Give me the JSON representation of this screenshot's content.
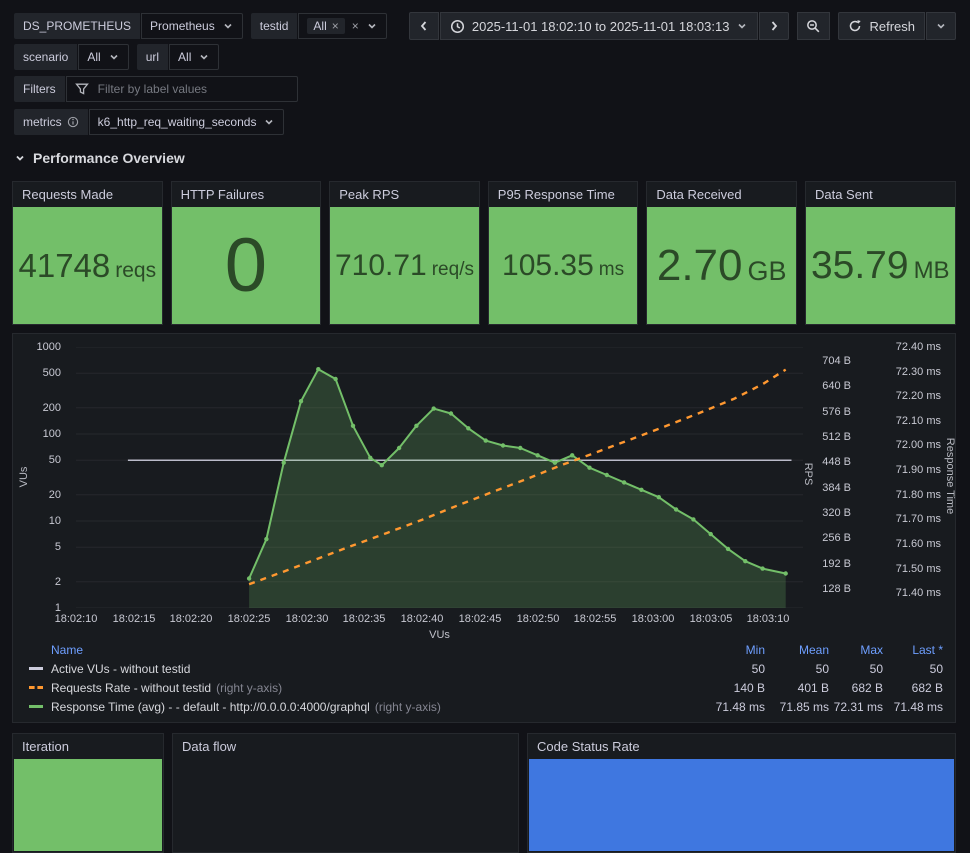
{
  "toolbar": {
    "datasource": {
      "label": "DS_PROMETHEUS",
      "value": "Prometheus"
    },
    "testid": {
      "label": "testid",
      "selected_chip": "All"
    },
    "time_range": {
      "value": "2025-11-01 18:02:10 to 2025-11-01 18:03:13"
    },
    "refresh": {
      "label": "Refresh"
    },
    "scenario": {
      "label": "scenario",
      "value": "All"
    },
    "url": {
      "label": "url",
      "value": "All"
    },
    "filters": {
      "label": "Filters",
      "placeholder": "Filter by label values"
    },
    "metrics": {
      "label": "metrics",
      "value": "k6_http_req_waiting_seconds"
    }
  },
  "section_title": "Performance Overview",
  "stats": [
    {
      "title": "Requests Made",
      "value": "41748",
      "unit": "reqs"
    },
    {
      "title": "HTTP Failures",
      "value": "0",
      "unit": ""
    },
    {
      "title": "Peak RPS",
      "value": "710.71",
      "unit": "req/s"
    },
    {
      "title": "P95 Response Time",
      "value": "105.35",
      "unit": "ms"
    },
    {
      "title": "Data Received",
      "value": "2.70",
      "unit": "GB"
    },
    {
      "title": "Data Sent",
      "value": "35.79",
      "unit": "MB"
    }
  ],
  "chart_data": {
    "type": "line",
    "x_tick_labels": [
      "18:02:10",
      "18:02:15",
      "18:02:20",
      "18:02:25",
      "18:02:30",
      "18:02:35",
      "18:02:40",
      "18:02:45",
      "18:02:50",
      "18:02:55",
      "18:03:00",
      "18:03:05",
      "18:03:10"
    ],
    "x_domain_seconds": [
      0,
      63
    ],
    "xlabel": "VUs",
    "grid": true,
    "axes": {
      "left": {
        "label": "VUs",
        "scale": "log10",
        "ticks": [
          1000,
          500,
          200,
          100,
          50,
          20,
          10,
          5,
          2,
          1
        ],
        "domain": [
          1,
          1000
        ]
      },
      "right_bytes": {
        "label": "RPS",
        "tick_labels": [
          "704 B",
          "640 B",
          "576 B",
          "512 B",
          "448 B",
          "384 B",
          "320 B",
          "256 B",
          "192 B",
          "128 B"
        ],
        "domain": [
          80,
          739
        ]
      },
      "right_ms": {
        "label": "Response Time",
        "tick_labels": [
          "72.40 ms",
          "72.30 ms",
          "72.20 ms",
          "72.10 ms",
          "72.00 ms",
          "71.90 ms",
          "71.80 ms",
          "71.70 ms",
          "71.60 ms",
          "71.50 ms",
          "71.40 ms"
        ],
        "domain": [
          71.34,
          72.4
        ]
      }
    },
    "series": [
      {
        "name": "Active VUs - without testid",
        "axis": "left",
        "color": "#ccccdc",
        "dashed": false,
        "points": [
          [
            4.5,
            50
          ],
          [
            62,
            50
          ]
        ]
      },
      {
        "name": "Requests Rate - without testid",
        "axis": "right_bytes",
        "color": "#ff9830",
        "dashed": true,
        "points": [
          [
            15,
            140
          ],
          [
            18,
            172
          ],
          [
            21,
            205
          ],
          [
            24,
            238
          ],
          [
            27,
            270
          ],
          [
            30,
            303
          ],
          [
            33,
            338
          ],
          [
            36,
            372
          ],
          [
            39,
            405
          ],
          [
            42,
            440
          ],
          [
            45,
            472
          ],
          [
            48,
            505
          ],
          [
            51,
            538
          ],
          [
            54,
            572
          ],
          [
            57,
            608
          ],
          [
            59.5,
            645
          ],
          [
            61.5,
            682
          ]
        ]
      },
      {
        "name": "Response Time (avg) - - default - http://0.0.0.0:4000/graphql",
        "axis": "right_ms",
        "color": "#73bf69",
        "dashed": false,
        "points": [
          [
            15,
            71.46
          ],
          [
            16.5,
            71.62
          ],
          [
            18,
            71.93
          ],
          [
            19.5,
            72.18
          ],
          [
            21,
            72.31
          ],
          [
            22.5,
            72.27
          ],
          [
            24,
            72.08
          ],
          [
            25.5,
            71.95
          ],
          [
            26.5,
            71.92
          ],
          [
            28,
            71.99
          ],
          [
            29.5,
            72.08
          ],
          [
            31,
            72.15
          ],
          [
            32.5,
            72.13
          ],
          [
            34,
            72.07
          ],
          [
            35.5,
            72.02
          ],
          [
            37,
            72.0
          ],
          [
            38.5,
            71.99
          ],
          [
            40,
            71.96
          ],
          [
            41.5,
            71.93
          ],
          [
            43,
            71.96
          ],
          [
            44.5,
            71.91
          ],
          [
            46,
            71.88
          ],
          [
            47.5,
            71.85
          ],
          [
            49,
            71.82
          ],
          [
            50.5,
            71.79
          ],
          [
            52,
            71.74
          ],
          [
            53.5,
            71.7
          ],
          [
            55,
            71.64
          ],
          [
            56.5,
            71.58
          ],
          [
            58,
            71.53
          ],
          [
            59.5,
            71.5
          ],
          [
            61.5,
            71.48
          ]
        ]
      }
    ],
    "legend": {
      "headers": [
        "Name",
        "Min",
        "Mean",
        "Max",
        "Last *"
      ],
      "rows": [
        {
          "name": "Active VUs - without testid",
          "suffix": "",
          "color": "#ccccdc",
          "dashed": false,
          "min": "50",
          "mean": "50",
          "max": "50",
          "last": "50"
        },
        {
          "name": "Requests Rate - without testid",
          "suffix": "(right y-axis)",
          "color": "#ff9830",
          "dashed": true,
          "min": "140 B",
          "mean": "401 B",
          "max": "682 B",
          "last": "682 B"
        },
        {
          "name": "Response Time (avg) - - default - http://0.0.0.0:4000/graphql",
          "suffix": "(right y-axis)",
          "color": "#73bf69",
          "dashed": false,
          "min": "71.48 ms",
          "mean": "71.85 ms",
          "max": "72.31 ms",
          "last": "71.48 ms"
        }
      ]
    }
  },
  "bottom_panels": [
    {
      "title": "Iteration",
      "bar_color": "#73bf69"
    },
    {
      "title": "Data flow",
      "bar_color": ""
    },
    {
      "title": "Code Status Rate",
      "bar_color": "#3f77e0"
    }
  ],
  "colors": {
    "page_bg": "#111217",
    "panel_bg": "#181b1f",
    "green": "#73bf69",
    "orange": "#ff9830",
    "stat_text": "#2b4a27",
    "legend_header": "#6e9fff",
    "blue_bar": "#3f77e0"
  }
}
